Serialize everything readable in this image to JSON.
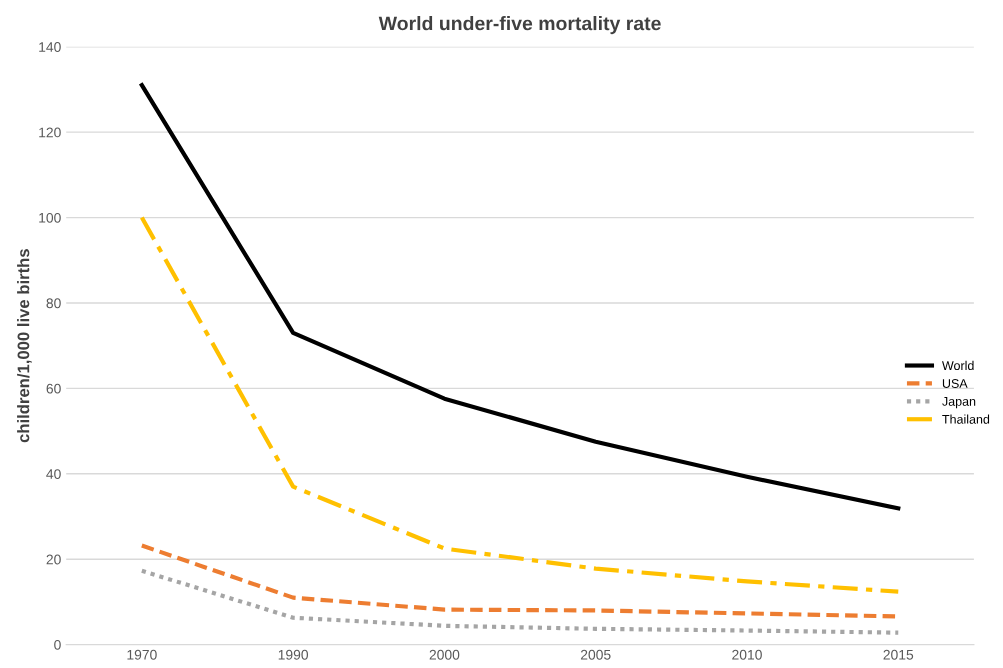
{
  "chart_data": {
    "type": "line",
    "title": "World under-five mortality rate",
    "ylabel": "children/1,000 live births",
    "categories": [
      "1970",
      "1990",
      "2000",
      "2005",
      "2010",
      "2015"
    ],
    "series": [
      {
        "name": "World",
        "color": "#000000",
        "line_style": "solid",
        "values": [
          131,
          73,
          57.6,
          47.5,
          39.3,
          31.9
        ]
      },
      {
        "name": "USA",
        "color": "#ed7d31",
        "line_style": "dashed",
        "values": [
          23.2,
          11,
          8.2,
          8,
          7.3,
          6.6
        ]
      },
      {
        "name": "Japan",
        "color": "#a5a5a5",
        "line_style": "dotted",
        "values": [
          17.3,
          6.3,
          4.4,
          3.7,
          3.3,
          2.8
        ]
      },
      {
        "name": "Thailand",
        "color": "#ffc000",
        "line_style": "dashdot",
        "values": [
          100,
          37,
          22.5,
          17.8,
          14.8,
          12.4
        ]
      }
    ],
    "ylim": [
      0,
      140
    ],
    "yticks": [
      0,
      20,
      40,
      60,
      80,
      100,
      120,
      140
    ],
    "grid": "y",
    "legend": "right",
    "marker": "none"
  }
}
